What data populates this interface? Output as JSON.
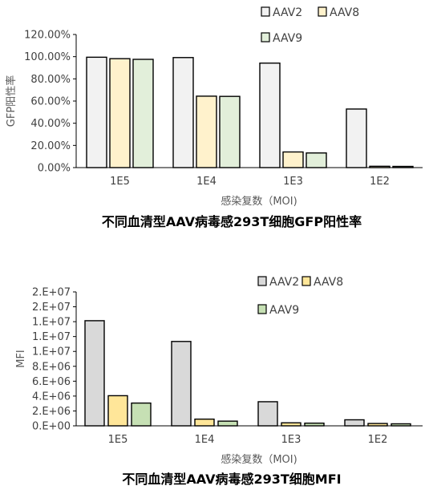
{
  "chart_data": [
    {
      "type": "bar",
      "title": "不同血清型AAV病毒感293T细胞GFP阳性率",
      "xlabel": "感染复数（MOI)",
      "ylabel": "GFP阳性率",
      "categories": [
        "1E5",
        "1E4",
        "1E3",
        "1E2"
      ],
      "ylim": [
        0,
        120
      ],
      "y_ticks": [
        "0.00%",
        "20.00%",
        "40.00%",
        "60.00%",
        "80.00%",
        "100.00%",
        "120.00%"
      ],
      "series": [
        {
          "name": "AAV2",
          "values": [
            99.5,
            99.2,
            94.2,
            52.8
          ],
          "color": "#f2f2f2"
        },
        {
          "name": "AAV8",
          "values": [
            98.2,
            64.4,
            14.1,
            1.2
          ],
          "color": "#fff2cc"
        },
        {
          "name": "AAV9",
          "values": [
            97.6,
            64.2,
            13.2,
            1.0
          ],
          "color": "#e2efda"
        }
      ],
      "legend_position": "top-right",
      "grid": false
    },
    {
      "type": "bar",
      "title": "不同血清型AAV病毒感293T细胞MFI",
      "xlabel": "感染复数（MOI)",
      "ylabel": "MFI",
      "categories": [
        "1E5",
        "1E4",
        "1E3",
        "1E2"
      ],
      "ylim": [
        0,
        20000000
      ],
      "y_ticks": [
        "0.E+00",
        "2.E+06",
        "4.E+06",
        "6.E+06",
        "8.E+06",
        "1.E+07",
        "1.E+07",
        "1.E+07",
        "2.E+07",
        "2.E+07"
      ],
      "series": [
        {
          "name": "AAV2",
          "values": [
            15700000,
            12600000,
            3600000,
            900000
          ],
          "color": "#d9d9d9"
        },
        {
          "name": "AAV8",
          "values": [
            4500000,
            1000000,
            450000,
            350000
          ],
          "color": "#ffe699"
        },
        {
          "name": "AAV9",
          "values": [
            3400000,
            700000,
            400000,
            300000
          ],
          "color": "#c6e0b4"
        }
      ],
      "legend_position": "top-right",
      "grid": false
    }
  ]
}
